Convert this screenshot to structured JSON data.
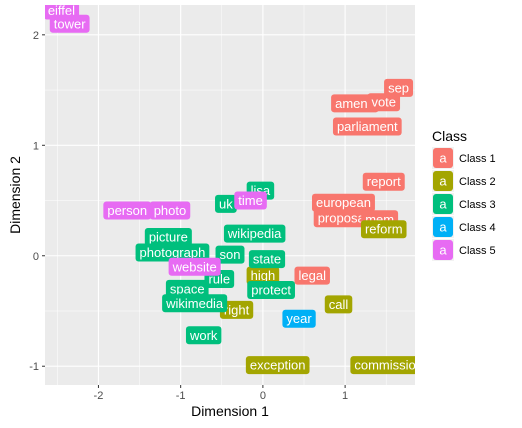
{
  "chart_data": {
    "type": "scatter",
    "xlabel": "Dimension 1",
    "ylabel": "Dimension 2",
    "xlim": [
      -2.65,
      1.85
    ],
    "ylim": [
      -1.17,
      2.27
    ],
    "x_ticks": [
      -2,
      -1,
      0,
      1
    ],
    "y_ticks": [
      -1,
      0,
      1,
      2
    ],
    "x_tick_labels": [
      "-2",
      "-1",
      "0",
      "1"
    ],
    "y_tick_labels": [
      "-1",
      "0",
      "1",
      "2"
    ],
    "grid": true,
    "legend": {
      "title": "Class",
      "position": "right",
      "key_glyph": "a",
      "entries": [
        {
          "name": "Class 1",
          "color": "#F8766D"
        },
        {
          "name": "Class 2",
          "color": "#A3A500"
        },
        {
          "name": "Class 3",
          "color": "#00BF7D"
        },
        {
          "name": "Class 4",
          "color": "#00B0F6"
        },
        {
          "name": "Class 5",
          "color": "#E76BF3"
        }
      ]
    },
    "points": [
      {
        "label": "eiffel",
        "x": -2.45,
        "y": 2.22,
        "class": 5
      },
      {
        "label": "tower",
        "x": -2.35,
        "y": 2.1,
        "class": 5
      },
      {
        "label": "sep",
        "x": 1.65,
        "y": 1.52,
        "class": 1
      },
      {
        "label": "amend",
        "x": 1.12,
        "y": 1.38,
        "class": 1
      },
      {
        "label": "vote",
        "x": 1.47,
        "y": 1.39,
        "class": 1
      },
      {
        "label": "parliament",
        "x": 1.27,
        "y": 1.17,
        "class": 1
      },
      {
        "label": "report",
        "x": 1.47,
        "y": 0.67,
        "class": 1
      },
      {
        "label": "european",
        "x": 0.98,
        "y": 0.48,
        "class": 1
      },
      {
        "label": "proposal",
        "x": 0.97,
        "y": 0.34,
        "class": 1
      },
      {
        "label": "mem",
        "x": 1.42,
        "y": 0.33,
        "class": 1
      },
      {
        "label": "legal",
        "x": 0.6,
        "y": -0.18,
        "class": 1
      },
      {
        "label": "reform",
        "x": 1.47,
        "y": 0.24,
        "class": 2
      },
      {
        "label": "call",
        "x": 0.92,
        "y": -0.44,
        "class": 2
      },
      {
        "label": "exception",
        "x": 0.18,
        "y": -0.99,
        "class": 2
      },
      {
        "label": "commission",
        "x": 1.53,
        "y": -0.99,
        "class": 2
      },
      {
        "label": "right",
        "x": -0.32,
        "y": -0.49,
        "class": 2
      },
      {
        "label": "high",
        "x": 0.0,
        "y": -0.18,
        "class": 2
      },
      {
        "label": "picture",
        "x": -1.15,
        "y": 0.17,
        "class": 3
      },
      {
        "label": "photograph",
        "x": -1.1,
        "y": 0.03,
        "class": 3
      },
      {
        "label": "wikipedia",
        "x": -0.1,
        "y": 0.2,
        "class": 3
      },
      {
        "label": "state",
        "x": 0.05,
        "y": -0.03,
        "class": 3
      },
      {
        "label": "protect",
        "x": 0.1,
        "y": -0.31,
        "class": 3
      },
      {
        "label": "space",
        "x": -0.92,
        "y": -0.3,
        "class": 3
      },
      {
        "label": "wikimedia",
        "x": -0.83,
        "y": -0.43,
        "class": 3
      },
      {
        "label": "work",
        "x": -0.72,
        "y": -0.72,
        "class": 3
      },
      {
        "label": "uk",
        "x": -0.45,
        "y": 0.47,
        "class": 3
      },
      {
        "label": "lisa",
        "x": -0.03,
        "y": 0.59,
        "class": 3
      },
      {
        "label": "rule",
        "x": -0.53,
        "y": -0.21,
        "class": 3
      },
      {
        "label": "son",
        "x": -0.4,
        "y": 0.01,
        "class": 3
      },
      {
        "label": "time",
        "x": -0.15,
        "y": 0.5,
        "class": 5
      },
      {
        "label": "person",
        "x": -1.65,
        "y": 0.41,
        "class": 5
      },
      {
        "label": "photo",
        "x": -1.13,
        "y": 0.41,
        "class": 5
      },
      {
        "label": "website",
        "x": -0.83,
        "y": -0.1,
        "class": 5
      },
      {
        "label": "year",
        "x": 0.44,
        "y": -0.57,
        "class": 4
      }
    ]
  }
}
